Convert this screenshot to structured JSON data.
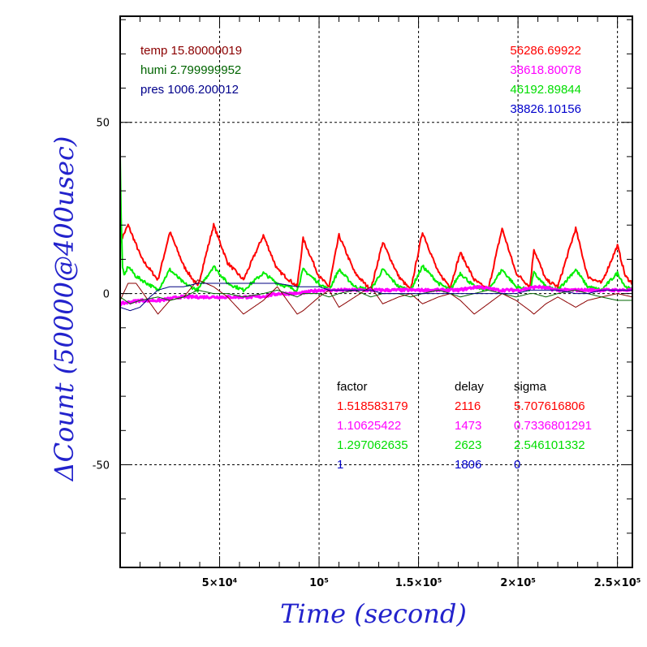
{
  "chart_data": {
    "type": "line",
    "xlabel": "Time (second)",
    "ylabel": "ΔCount (50000@400usec)",
    "xlim": [
      0,
      2575
    ],
    "ylim": [
      -80,
      81
    ],
    "x_ticks": [
      {
        "v": 500,
        "label": "5×10⁴"
      },
      {
        "v": 1000,
        "label": "10⁵"
      },
      {
        "v": 1500,
        "label": "1.5×10⁵"
      },
      {
        "v": 2000,
        "label": "2×10⁵"
      },
      {
        "v": 2500,
        "label": "2.5×10⁵"
      }
    ],
    "y_ticks": [
      {
        "v": 50,
        "label": "50"
      },
      {
        "v": 0,
        "label": "0"
      },
      {
        "v": -50,
        "label": "-50"
      }
    ],
    "grid": true,
    "environment": [
      {
        "text": "temp 15.80000019",
        "color": "#8b0000"
      },
      {
        "text": "humi 2.799999952",
        "color": "#006400"
      },
      {
        "text": "pres 1006.200012",
        "color": "#00008b"
      }
    ],
    "totals": [
      {
        "text": "56286.69922",
        "color": "#ff0000"
      },
      {
        "text": "38618.80078",
        "color": "#ff00ff"
      },
      {
        "text": "46192.89844",
        "color": "#00dd00"
      },
      {
        "text": "38826.10156",
        "color": "#0000cc"
      }
    ],
    "table": {
      "headers": [
        "factor",
        "delay",
        "sigma"
      ],
      "rows": [
        {
          "factor": "1.518583179",
          "delay": "2116",
          "sigma": "5.707616806",
          "color": "#ff0000"
        },
        {
          "factor": "1.10625422",
          "delay": "1473",
          "sigma": "0.7336801291",
          "color": "#ff00ff"
        },
        {
          "factor": "1.297062635",
          "delay": "2623",
          "sigma": "2.546101332",
          "color": "#00dd00"
        },
        {
          "factor": "1",
          "delay": "1806",
          "sigma": "0",
          "color": "#0000cc"
        }
      ]
    },
    "series": [
      {
        "color": "#ff0000",
        "width": 2,
        "noise": 0.5,
        "points": [
          [
            0,
            15
          ],
          [
            40,
            20
          ],
          [
            110,
            10
          ],
          [
            190,
            4
          ],
          [
            250,
            18
          ],
          [
            320,
            8
          ],
          [
            390,
            2
          ],
          [
            470,
            20
          ],
          [
            540,
            9
          ],
          [
            620,
            4
          ],
          [
            720,
            17
          ],
          [
            790,
            7
          ],
          [
            890,
            2
          ],
          [
            920,
            16
          ],
          [
            1000,
            5
          ],
          [
            1050,
            2
          ],
          [
            1100,
            17
          ],
          [
            1180,
            6
          ],
          [
            1260,
            1
          ],
          [
            1320,
            15
          ],
          [
            1400,
            5
          ],
          [
            1460,
            1
          ],
          [
            1520,
            18
          ],
          [
            1600,
            6
          ],
          [
            1660,
            2
          ],
          [
            1710,
            12
          ],
          [
            1780,
            4
          ],
          [
            1850,
            1
          ],
          [
            1920,
            19
          ],
          [
            1990,
            6
          ],
          [
            2060,
            2
          ],
          [
            2080,
            13
          ],
          [
            2140,
            4
          ],
          [
            2200,
            2
          ],
          [
            2290,
            19
          ],
          [
            2350,
            5
          ],
          [
            2420,
            3
          ],
          [
            2500,
            14
          ],
          [
            2540,
            5
          ],
          [
            2575,
            3
          ]
        ]
      },
      {
        "color": "#00ee00",
        "width": 2,
        "noise": 0.5,
        "points": [
          [
            0,
            40
          ],
          [
            5,
            22
          ],
          [
            12,
            8
          ],
          [
            20,
            5
          ],
          [
            40,
            8
          ],
          [
            80,
            5
          ],
          [
            190,
            1
          ],
          [
            250,
            7
          ],
          [
            320,
            3
          ],
          [
            390,
            1
          ],
          [
            470,
            8
          ],
          [
            540,
            3
          ],
          [
            620,
            1
          ],
          [
            720,
            6
          ],
          [
            790,
            3
          ],
          [
            890,
            1
          ],
          [
            920,
            7
          ],
          [
            1000,
            3
          ],
          [
            1050,
            1
          ],
          [
            1100,
            7
          ],
          [
            1180,
            2
          ],
          [
            1260,
            1
          ],
          [
            1320,
            7
          ],
          [
            1400,
            2
          ],
          [
            1460,
            1
          ],
          [
            1520,
            8
          ],
          [
            1600,
            3
          ],
          [
            1660,
            1
          ],
          [
            1710,
            6
          ],
          [
            1780,
            2
          ],
          [
            1850,
            1
          ],
          [
            1920,
            7
          ],
          [
            1990,
            2
          ],
          [
            2060,
            1
          ],
          [
            2080,
            6
          ],
          [
            2140,
            2
          ],
          [
            2200,
            1
          ],
          [
            2290,
            7
          ],
          [
            2350,
            2
          ],
          [
            2420,
            1
          ],
          [
            2500,
            6
          ],
          [
            2540,
            2
          ],
          [
            2575,
            1
          ]
        ]
      },
      {
        "color": "#ff00ff",
        "width": 3,
        "noise": 0.4,
        "points": [
          [
            0,
            -3
          ],
          [
            100,
            -2
          ],
          [
            200,
            -2
          ],
          [
            300,
            -1
          ],
          [
            400,
            -1
          ],
          [
            500,
            -1
          ],
          [
            600,
            -1
          ],
          [
            700,
            -1
          ],
          [
            800,
            0
          ],
          [
            900,
            0
          ],
          [
            1000,
            1
          ],
          [
            1100,
            1
          ],
          [
            1200,
            1
          ],
          [
            1300,
            1
          ],
          [
            1400,
            1
          ],
          [
            1500,
            1
          ],
          [
            1600,
            1
          ],
          [
            1700,
            1
          ],
          [
            1800,
            2
          ],
          [
            1900,
            1
          ],
          [
            2000,
            1
          ],
          [
            2100,
            2
          ],
          [
            2200,
            1
          ],
          [
            2300,
            1
          ],
          [
            2400,
            1
          ],
          [
            2500,
            1
          ],
          [
            2575,
            1
          ]
        ]
      },
      {
        "color": "#8b0000",
        "width": 1,
        "noise": 0,
        "points": [
          [
            0,
            -2
          ],
          [
            40,
            3
          ],
          [
            80,
            3
          ],
          [
            190,
            -6
          ],
          [
            250,
            -2
          ],
          [
            320,
            -1
          ],
          [
            390,
            4
          ],
          [
            470,
            2
          ],
          [
            540,
            -1
          ],
          [
            620,
            -6
          ],
          [
            720,
            -2
          ],
          [
            790,
            2
          ],
          [
            890,
            -6
          ],
          [
            920,
            -5
          ],
          [
            1000,
            -1
          ],
          [
            1050,
            1
          ],
          [
            1100,
            -4
          ],
          [
            1180,
            -1
          ],
          [
            1260,
            2
          ],
          [
            1320,
            -3
          ],
          [
            1400,
            -1
          ],
          [
            1460,
            0
          ],
          [
            1520,
            -3
          ],
          [
            1600,
            -1
          ],
          [
            1660,
            0
          ],
          [
            1710,
            -2
          ],
          [
            1780,
            -6
          ],
          [
            1850,
            -3
          ],
          [
            1920,
            0
          ],
          [
            1990,
            -2
          ],
          [
            2060,
            -5
          ],
          [
            2080,
            -6
          ],
          [
            2140,
            -3
          ],
          [
            2200,
            -1
          ],
          [
            2290,
            -4
          ],
          [
            2350,
            -2
          ],
          [
            2420,
            -1
          ],
          [
            2500,
            0
          ],
          [
            2575,
            -1
          ]
        ]
      },
      {
        "color": "#006400",
        "width": 1,
        "noise": 0,
        "points": [
          [
            0,
            -1
          ],
          [
            50,
            -3
          ],
          [
            100,
            -2
          ],
          [
            190,
            -1
          ],
          [
            250,
            -2
          ],
          [
            320,
            -1
          ],
          [
            390,
            1
          ],
          [
            470,
            0
          ],
          [
            540,
            0
          ],
          [
            620,
            -1
          ],
          [
            720,
            0
          ],
          [
            790,
            1
          ],
          [
            890,
            -1
          ],
          [
            920,
            0
          ],
          [
            1000,
            0
          ],
          [
            1050,
            -1
          ],
          [
            1100,
            0
          ],
          [
            1180,
            1
          ],
          [
            1260,
            -1
          ],
          [
            1320,
            0
          ],
          [
            1400,
            0
          ],
          [
            1460,
            -1
          ],
          [
            1520,
            0
          ],
          [
            1600,
            1
          ],
          [
            1660,
            0
          ],
          [
            1710,
            -1
          ],
          [
            1780,
            0
          ],
          [
            1850,
            1
          ],
          [
            1920,
            0
          ],
          [
            1990,
            -1
          ],
          [
            2060,
            0
          ],
          [
            2080,
            0
          ],
          [
            2140,
            -1
          ],
          [
            2200,
            0
          ],
          [
            2290,
            1
          ],
          [
            2350,
            0
          ],
          [
            2420,
            -1
          ],
          [
            2500,
            -2
          ],
          [
            2575,
            -2
          ]
        ]
      },
      {
        "color": "#000080",
        "width": 1,
        "noise": 0,
        "points": [
          [
            0,
            -4
          ],
          [
            50,
            -5
          ],
          [
            100,
            -4
          ],
          [
            150,
            -1
          ],
          [
            190,
            1
          ],
          [
            250,
            2
          ],
          [
            320,
            2
          ],
          [
            390,
            3
          ],
          [
            470,
            3
          ],
          [
            540,
            3
          ],
          [
            620,
            3
          ],
          [
            720,
            3
          ],
          [
            790,
            3
          ],
          [
            890,
            2
          ],
          [
            920,
            2
          ],
          [
            1000,
            2
          ],
          [
            1050,
            1
          ],
          [
            1100,
            1
          ],
          [
            1180,
            1
          ],
          [
            1260,
            1
          ],
          [
            1320,
            0
          ],
          [
            1400,
            0
          ],
          [
            1460,
            0
          ],
          [
            1520,
            0
          ],
          [
            1600,
            0
          ],
          [
            1660,
            0
          ],
          [
            1710,
            0
          ],
          [
            1780,
            0
          ],
          [
            1850,
            0
          ],
          [
            1920,
            0
          ],
          [
            1990,
            0
          ],
          [
            2060,
            1
          ],
          [
            2080,
            1
          ],
          [
            2140,
            1
          ],
          [
            2200,
            1
          ],
          [
            2290,
            0
          ],
          [
            2350,
            0
          ],
          [
            2420,
            1
          ],
          [
            2500,
            1
          ],
          [
            2575,
            1
          ]
        ]
      }
    ]
  }
}
